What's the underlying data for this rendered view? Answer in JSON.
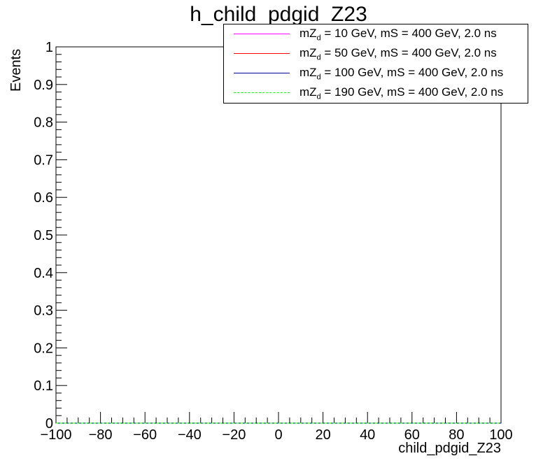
{
  "chart_data": {
    "type": "line",
    "title": "h_child_pdgid_Z23",
    "xlabel": "child_pdgid_Z23",
    "ylabel": "Events",
    "xlim": [
      -100,
      100
    ],
    "ylim": [
      0,
      1
    ],
    "x_ticks": [
      "−100",
      "−80",
      "−60",
      "−40",
      "−20",
      "0",
      "20",
      "40",
      "60",
      "80",
      "100"
    ],
    "y_ticks": [
      "0",
      "0.1",
      "0.2",
      "0.3",
      "0.4",
      "0.5",
      "0.6",
      "0.7",
      "0.8",
      "0.9",
      "1"
    ],
    "grid": false,
    "legend_position": "top-right",
    "series": [
      {
        "name_prefix": "mZ",
        "name_sub": "d",
        "name_suffix": " = 10 GeV, mS = 400 GeV, 2.0 ns",
        "color": "#ff00ff",
        "dashed": false,
        "x": [
          -100,
          100
        ],
        "y": [
          0,
          0
        ]
      },
      {
        "name_prefix": "mZ",
        "name_sub": "d",
        "name_suffix": " = 50 GeV, mS = 400 GeV, 2.0 ns",
        "color": "#ff0000",
        "dashed": false,
        "x": [
          -100,
          100
        ],
        "y": [
          0,
          0
        ]
      },
      {
        "name_prefix": "mZ",
        "name_sub": "d",
        "name_suffix": " = 100 GeV, mS = 400 GeV, 2.0 ns",
        "color": "#000099",
        "dashed": false,
        "x": [
          -100,
          100
        ],
        "y": [
          0,
          0
        ]
      },
      {
        "name_prefix": "mZ",
        "name_sub": "d",
        "name_suffix": " = 190 GeV, mS = 400 GeV, 2.0 ns",
        "color": "#00ff00",
        "dashed": true,
        "x": [
          -100,
          100
        ],
        "y": [
          0,
          0
        ]
      }
    ]
  }
}
